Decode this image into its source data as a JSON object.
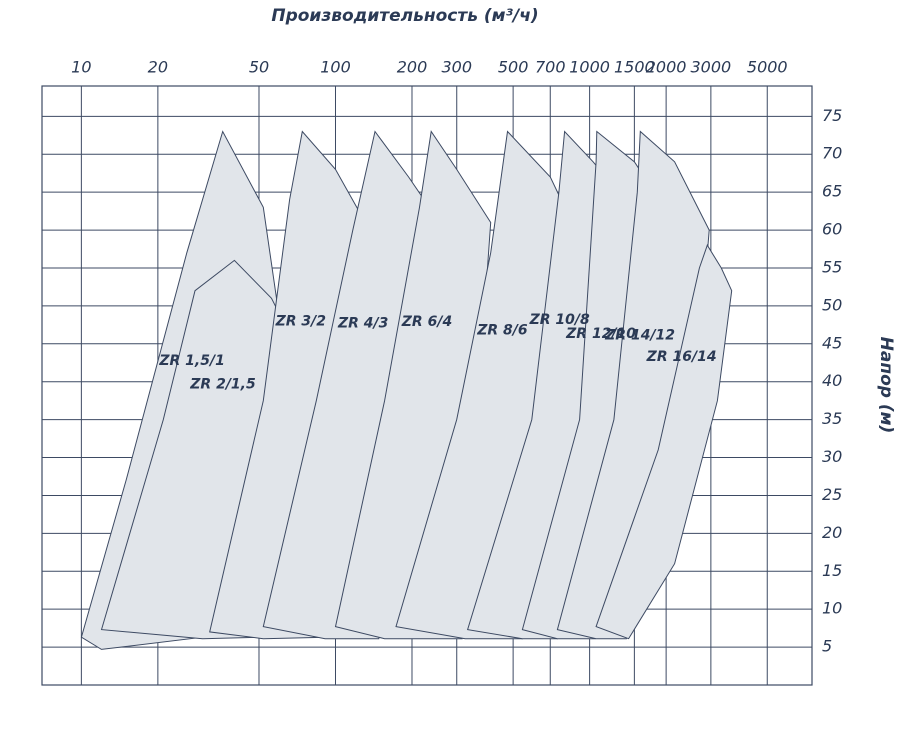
{
  "chart_data": {
    "type": "region",
    "title": "Производительность (м³/ч)",
    "y_label": "Напор (м)",
    "x_scale": "log",
    "xlim": [
      7,
      7500
    ],
    "xticks": [
      10,
      20,
      50,
      100,
      200,
      300,
      500,
      700,
      1000,
      1500,
      2000,
      3000,
      5000
    ],
    "ylim": [
      0,
      79
    ],
    "yticks": [
      5,
      10,
      15,
      20,
      25,
      30,
      35,
      40,
      45,
      50,
      55,
      60,
      65,
      70,
      75
    ],
    "grid": true,
    "color": "#e1e5ea",
    "edge_color": "#3d4a63",
    "series": [
      {
        "name": "ZR 1,5/1",
        "x": [
          10,
          15,
          26,
          36,
          52,
          61,
          52,
          30,
          12
        ],
        "y": [
          6.3,
          27,
          57,
          73,
          63,
          47,
          29,
          6.3,
          4.7
        ]
      },
      {
        "name": "ZR 2/1,5",
        "x": [
          12,
          21,
          28,
          40,
          56,
          69,
          61,
          52,
          30
        ],
        "y": [
          7.3,
          35,
          52,
          56,
          51,
          45,
          27,
          6.3,
          6.1
        ]
      },
      {
        "name": "ZR 3/2",
        "x": [
          32,
          52,
          66,
          74,
          100,
          131,
          117,
          91,
          52
        ],
        "y": [
          7,
          37.5,
          64,
          73,
          68,
          61,
          37.5,
          6.3,
          6.1
        ]
      },
      {
        "name": "ZR 4/3",
        "x": [
          52,
          84,
          117,
          143,
          194,
          234,
          214,
          148,
          91
        ],
        "y": [
          7.7,
          37.5,
          60,
          73,
          67,
          63,
          37.5,
          6.1,
          6.1
        ]
      },
      {
        "name": "ZR 6/4",
        "x": [
          100,
          156,
          214,
          238,
          300,
          408,
          364,
          315,
          156
        ],
        "y": [
          7.7,
          37.5,
          63,
          73,
          68,
          61,
          37.5,
          6.1,
          6.1
        ]
      },
      {
        "name": "ZR 8/6",
        "x": [
          173,
          300,
          408,
          475,
          700,
          881,
          747,
          544,
          324
        ],
        "y": [
          7.7,
          35,
          57,
          73,
          67,
          60,
          37.5,
          6.1,
          6.1
        ]
      },
      {
        "name": "ZR 10/8",
        "x": [
          331,
          592,
          757,
          797,
          1032,
          1454,
          1206,
          747,
          544
        ],
        "y": [
          7.3,
          35,
          65,
          73,
          69,
          63,
          37.5,
          6.1,
          6.1
        ]
      },
      {
        "name": "ZR 12/10",
        "x": [
          544,
          913,
          1060,
          1067,
          1500,
          1963,
          1862,
          1169,
          1053,
          747
        ],
        "y": [
          7.3,
          35,
          69,
          73,
          69,
          63,
          44,
          11,
          6.1,
          6.1
        ]
      },
      {
        "name": "ZR 14/12",
        "x": [
          747,
          1246,
          1541,
          1583,
          2160,
          2955,
          2705,
          1671,
          1396,
          1060
        ],
        "y": [
          7.3,
          35,
          65,
          73,
          69,
          60,
          44,
          16,
          6.1,
          6.1
        ]
      },
      {
        "name": "ZR 16/14",
        "x": [
          1060,
          1862,
          2705,
          2905,
          3297,
          3622,
          3182,
          2160,
          1423
        ],
        "y": [
          7.7,
          31,
          55,
          58,
          55,
          52,
          37.5,
          16,
          6.1
        ]
      }
    ]
  }
}
